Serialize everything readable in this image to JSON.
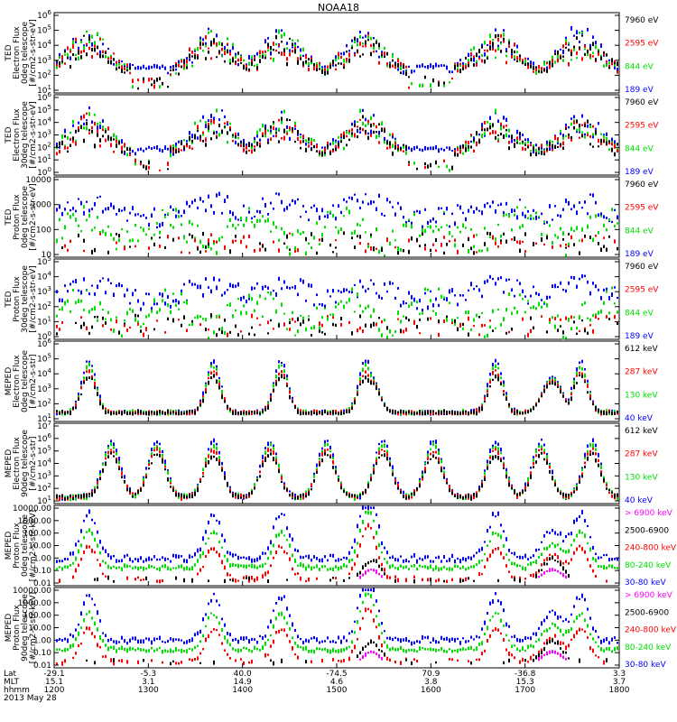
{
  "title": "NOAA18",
  "colors": {
    "black": "#000000",
    "red": "#ff0000",
    "green": "#00e000",
    "blue": "#0000ff",
    "magenta": "#ff00ff"
  },
  "chart_data": [
    {
      "type": "scatter",
      "panel": "TED electron flux 0 deg",
      "ylabel": [
        "TED",
        "Electron Flux",
        "0deg telescope",
        "[#/cm2-s-str-eV]"
      ],
      "yticks": [
        "10^6",
        "10^5",
        "10^4",
        "10^3",
        "10^2",
        "10^1"
      ],
      "ylog_range": [
        1,
        6
      ],
      "legend": [
        {
          "label": "7960 eV",
          "color": "#000000"
        },
        {
          "label": "2595 eV",
          "color": "#ff0000"
        },
        {
          "label": "844 eV",
          "color": "#00e000"
        },
        {
          "label": "189 eV",
          "color": "#0000ff"
        }
      ]
    },
    {
      "type": "scatter",
      "panel": "TED electron flux 30 deg",
      "ylabel": [
        "TED",
        "Electron Flux",
        "30deg telescope",
        "[#/cm2-s-str-eV]"
      ],
      "yticks": [
        "10^6",
        "10^5",
        "10^4",
        "10^3",
        "10^2",
        "10^1",
        "10^0"
      ],
      "ylog_range": [
        0,
        6
      ],
      "legend": [
        {
          "label": "7960 eV",
          "color": "#000000"
        },
        {
          "label": "2595 eV",
          "color": "#ff0000"
        },
        {
          "label": "844 eV",
          "color": "#00e000"
        },
        {
          "label": "189 eV",
          "color": "#0000ff"
        }
      ]
    },
    {
      "type": "scatter",
      "panel": "TED proton flux 0 deg",
      "ylabel": [
        "TED",
        "Proton Flux",
        "0deg telescope",
        "[#/cm2-s-str-eV]"
      ],
      "yticks": [
        "10000",
        "1000",
        "100",
        "10"
      ],
      "ylog_range": [
        0,
        4
      ],
      "legend": [
        {
          "label": "7960 eV",
          "color": "#000000"
        },
        {
          "label": "2595 eV",
          "color": "#ff0000"
        },
        {
          "label": "844 eV",
          "color": "#00e000"
        },
        {
          "label": "189 eV",
          "color": "#0000ff"
        }
      ]
    },
    {
      "type": "scatter",
      "panel": "TED proton flux 30 deg",
      "ylabel": [
        "TED",
        "Proton Flux",
        "30deg telescope",
        "[#/cm2-s-str-eV]"
      ],
      "yticks": [
        "10^5",
        "10^4",
        "10^3",
        "10^2",
        "10^1",
        "10^0"
      ],
      "ylog_range": [
        0,
        5
      ],
      "legend": [
        {
          "label": "7960 eV",
          "color": "#000000"
        },
        {
          "label": "2595 eV",
          "color": "#ff0000"
        },
        {
          "label": "844 eV",
          "color": "#00e000"
        },
        {
          "label": "189 eV",
          "color": "#0000ff"
        }
      ]
    },
    {
      "type": "scatter",
      "panel": "MEPED electron flux 0 deg",
      "ylabel": [
        "MEPED",
        "Electron Flux",
        "0deg telescope",
        "[#/cm2-s-str]"
      ],
      "yticks": [
        "10^6",
        "10^5",
        "10^4",
        "10^3",
        "10^2",
        "10^1"
      ],
      "ylog_range": [
        1,
        6
      ],
      "legend": [
        {
          "label": "612 keV",
          "color": "#000000"
        },
        {
          "label": "287 keV",
          "color": "#ff0000"
        },
        {
          "label": "130 keV",
          "color": "#00e000"
        },
        {
          "label": "40 keV",
          "color": "#0000ff"
        }
      ]
    },
    {
      "type": "scatter",
      "panel": "MEPED electron flux 90 deg",
      "ylabel": [
        "MEPED",
        "Electron Flux",
        "90deg telescope",
        "[#/cm2-s-str]"
      ],
      "yticks": [
        "10^7",
        "10^6",
        "10^5",
        "10^4",
        "10^3",
        "10^2",
        "10^1"
      ],
      "ylog_range": [
        1,
        7
      ],
      "legend": [
        {
          "label": "612 keV",
          "color": "#000000"
        },
        {
          "label": "287 keV",
          "color": "#ff0000"
        },
        {
          "label": "130 keV",
          "color": "#00e000"
        },
        {
          "label": "40 keV",
          "color": "#0000ff"
        }
      ]
    },
    {
      "type": "scatter",
      "panel": "MEPED proton flux 0 deg",
      "ylabel": [
        "MEPED",
        "Proton Flux",
        "0deg telescope",
        "[#/cm2-s-str-keV]"
      ],
      "yticks": [
        "10000.00",
        "1000.00",
        "100.00",
        "10.00",
        "1.00",
        "0.10",
        "0.01"
      ],
      "ylog_range": [
        -2,
        4
      ],
      "legend": [
        {
          "label": "> 6900 keV",
          "color": "#ff00ff"
        },
        {
          "label": "2500-6900",
          "color": "#000000"
        },
        {
          "label": "240-800 keV",
          "color": "#ff0000"
        },
        {
          "label": "80-240 keV",
          "color": "#00e000"
        },
        {
          "label": "30-80 keV",
          "color": "#0000ff"
        }
      ]
    },
    {
      "type": "scatter",
      "panel": "MEPED proton flux 90 deg",
      "ylabel": [
        "MEPED",
        "Proton Flux",
        "90deg telescope",
        "[#/cm2-s-str-keV]"
      ],
      "yticks": [
        "10000.00",
        "1000.00",
        "100.00",
        "10.00",
        "1.00",
        "0.10",
        "0.01"
      ],
      "ylog_range": [
        -2,
        4
      ],
      "legend": [
        {
          "label": "> 6900 keV",
          "color": "#ff00ff"
        },
        {
          "label": "2500-6900",
          "color": "#000000"
        },
        {
          "label": "240-800 keV",
          "color": "#ff0000"
        },
        {
          "label": "80-240 keV",
          "color": "#00e000"
        },
        {
          "label": "30-80 keV",
          "color": "#0000ff"
        }
      ]
    }
  ],
  "xaxis": {
    "row_labels": [
      "Lat",
      "MLT",
      "hhmm",
      "2013 May 28"
    ],
    "ticks": [
      {
        "lat": "-29.1",
        "mlt": "15.1",
        "time": "1200"
      },
      {
        "lat": "-5.3",
        "mlt": "3.1",
        "time": "1300"
      },
      {
        "lat": "40.0",
        "mlt": "14.9",
        "time": "1400"
      },
      {
        "lat": "-74.5",
        "mlt": "4.6",
        "time": "1500"
      },
      {
        "lat": "70.9",
        "mlt": "3.8",
        "time": "1600"
      },
      {
        "lat": "-36.8",
        "mlt": "15.3",
        "time": "1700"
      },
      {
        "lat": "3.3",
        "mlt": "3.7",
        "time": "1800"
      }
    ]
  }
}
